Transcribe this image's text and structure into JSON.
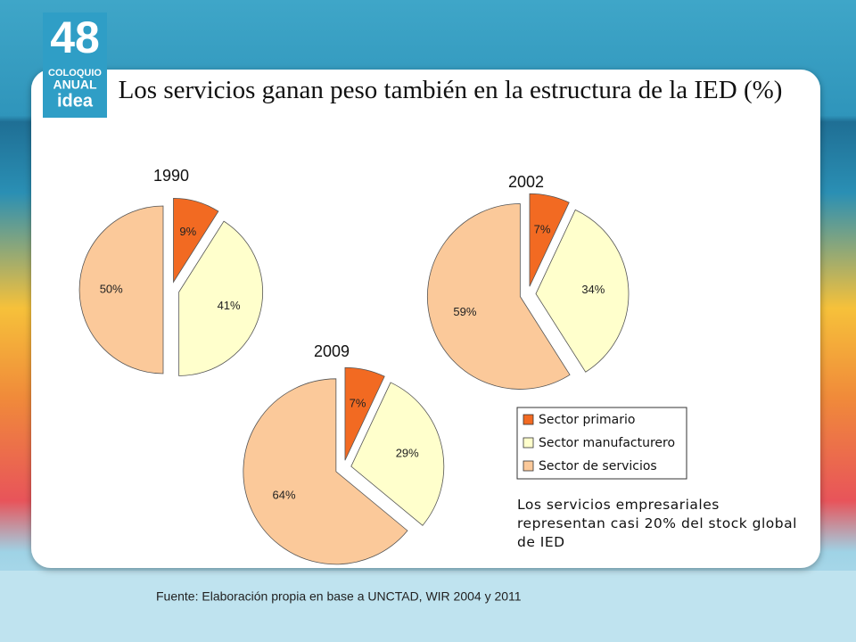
{
  "title": "Los servicios ganan peso también en la estructura de la IED (%)",
  "logo": {
    "number": "48",
    "line1": "COLOQUIO",
    "line2": "ANUAL",
    "line3": "idea"
  },
  "chart_data": [
    {
      "type": "pie",
      "title": "1990",
      "categories": [
        "Sector primario",
        "Sector manufacturero",
        "Sector de servicios"
      ],
      "values": [
        9,
        41,
        50
      ],
      "value_labels": [
        "9%",
        "41%",
        "50%"
      ],
      "colors": [
        "#f26a22",
        "#ffffcc",
        "#fbc99a"
      ]
    },
    {
      "type": "pie",
      "title": "2002",
      "categories": [
        "Sector primario",
        "Sector manufacturero",
        "Sector de servicios"
      ],
      "values": [
        7,
        34,
        59
      ],
      "value_labels": [
        "7%",
        "34%",
        "59%"
      ],
      "colors": [
        "#f26a22",
        "#ffffcc",
        "#fbc99a"
      ]
    },
    {
      "type": "pie",
      "title": "2009",
      "categories": [
        "Sector primario",
        "Sector manufacturero",
        "Sector de servicios"
      ],
      "values": [
        7,
        29,
        64
      ],
      "value_labels": [
        "7%",
        "29%",
        "64%"
      ],
      "colors": [
        "#f26a22",
        "#ffffcc",
        "#fbc99a"
      ]
    }
  ],
  "note": "Los servicios empresariales representan casi 20% del stock global de IED",
  "source": "Fuente: Elaboración propia en base a UNCTAD, WIR 2004 y 2011"
}
